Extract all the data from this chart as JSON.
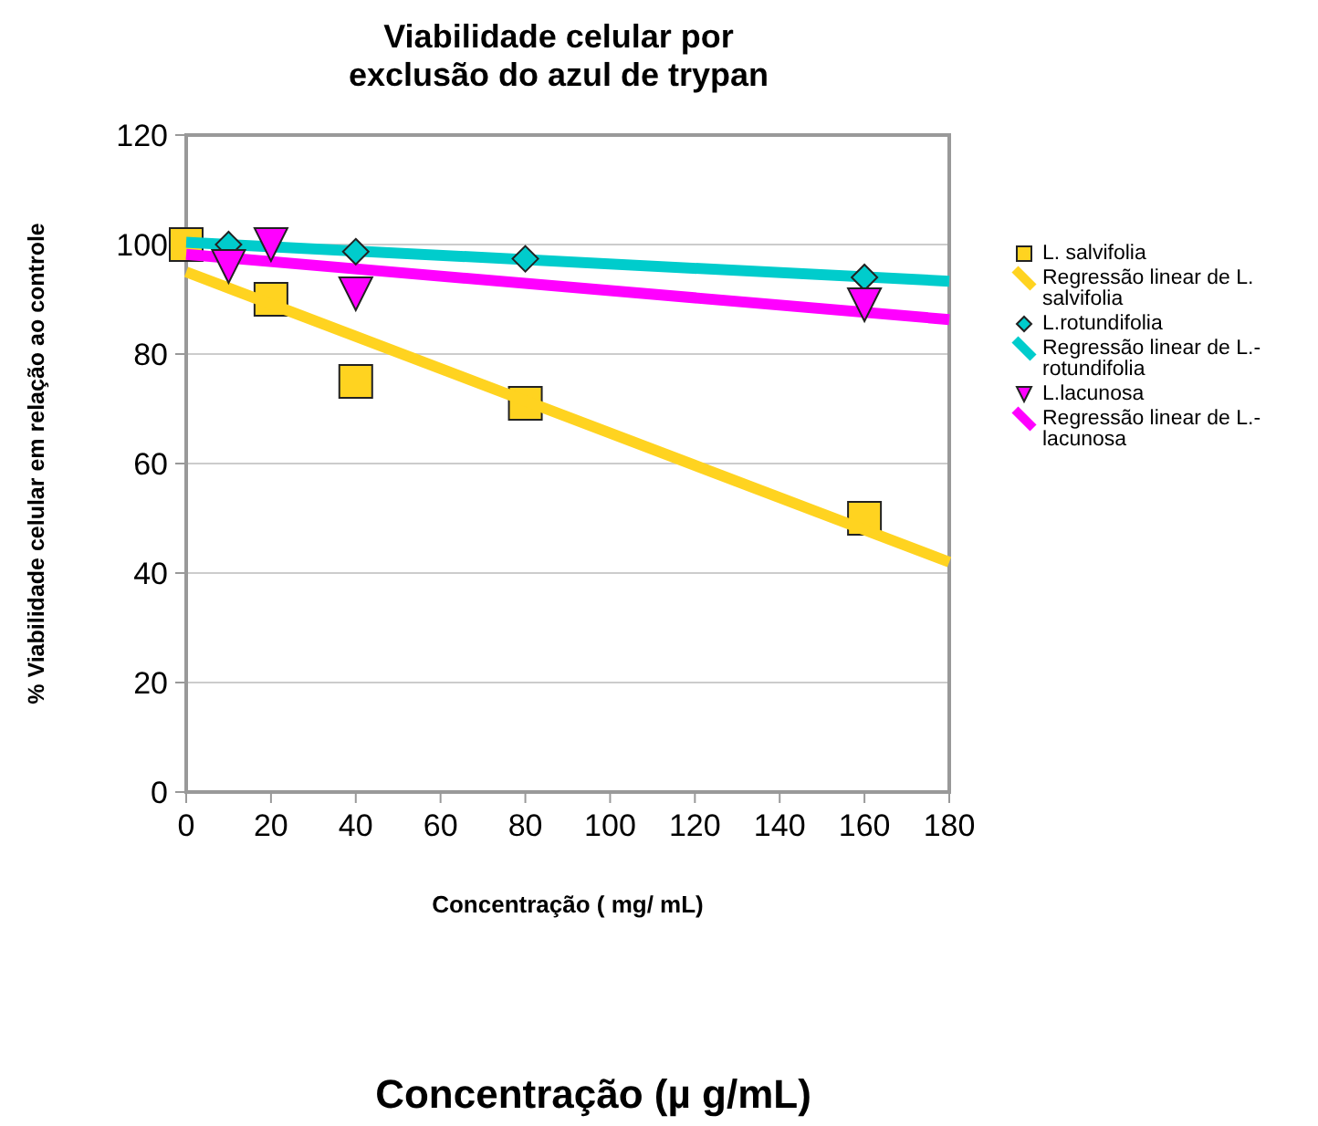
{
  "chart_data": {
    "type": "scatter",
    "title": "Viabilidade celular por\nexclusão do azul de trypan",
    "xlabel": "Concentração ( mg/ mL)",
    "ylabel": "% Viabilidade celular em relação ao controle",
    "xlim": [
      0,
      180
    ],
    "xticks": [
      0,
      20,
      40,
      60,
      80,
      100,
      120,
      140,
      160,
      180
    ],
    "ylim": [
      0,
      120
    ],
    "yticks": [
      0,
      20,
      40,
      60,
      80,
      100,
      120
    ],
    "grid": "y",
    "legend": "right",
    "series": [
      {
        "name": "L. salvifolia",
        "marker": "square",
        "color": "#ffd320",
        "x": [
          0,
          20,
          40,
          80,
          160
        ],
        "values": [
          100,
          90,
          75,
          71,
          50
        ]
      },
      {
        "name": "Regressão linear de L. salvifolia",
        "type": "line",
        "marker": "none",
        "color": "#ffd320",
        "x": [
          0,
          180
        ],
        "values": [
          95,
          42
        ]
      },
      {
        "name": "L.rotundifolia",
        "marker": "diamond",
        "color": "#00cccc",
        "x": [
          10,
          40,
          80,
          160
        ],
        "values": [
          100,
          98.7,
          97.4,
          94
        ]
      },
      {
        "name": "Regressão linear de L.-rotundifolia",
        "type": "line",
        "marker": "none",
        "color": "#00cccc",
        "x": [
          0,
          180
        ],
        "values": [
          100.4,
          93.3
        ]
      },
      {
        "name": "L.lacunosa",
        "marker": "triangle",
        "color": "#ff00ff",
        "x": [
          10,
          20,
          40,
          160
        ],
        "values": [
          96,
          100,
          91,
          89
        ]
      },
      {
        "name": "Regressão linear de L.-lacunosa",
        "type": "line",
        "marker": "none",
        "color": "#ff00ff",
        "x": [
          0,
          180
        ],
        "values": [
          98.2,
          86.3
        ]
      }
    ],
    "annotations": [
      "Concentração (µ g/mL)"
    ]
  }
}
